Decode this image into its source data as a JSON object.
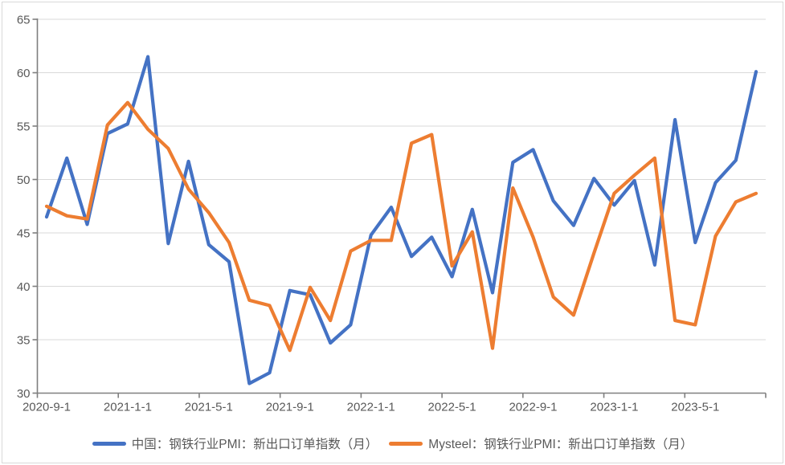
{
  "chart_data": {
    "type": "line",
    "title": "",
    "x": [
      "2020-9",
      "2020-10",
      "2020-11",
      "2020-12",
      "2021-1",
      "2021-2",
      "2021-3",
      "2021-4",
      "2021-5",
      "2021-6",
      "2021-7",
      "2021-8",
      "2021-9",
      "2021-10",
      "2021-11",
      "2021-12",
      "2022-1",
      "2022-2",
      "2022-3",
      "2022-4",
      "2022-5",
      "2022-6",
      "2022-7",
      "2022-8",
      "2022-9",
      "2022-10",
      "2022-11",
      "2022-12",
      "2023-1",
      "2023-2",
      "2023-3",
      "2023-4",
      "2023-5",
      "2023-6",
      "2023-7",
      "2023-8"
    ],
    "x_tick_labels": [
      "2020-9-1",
      "2021-1-1",
      "2021-5-1",
      "2021-9-1",
      "2022-1-1",
      "2022-5-1",
      "2022-9-1",
      "2023-1-1",
      "2023-5-1"
    ],
    "x_tick_interval": 4,
    "y_ticks": [
      30,
      35,
      40,
      45,
      50,
      55,
      60,
      65
    ],
    "ylim": [
      30,
      65
    ],
    "grid": "horizontal",
    "legend_position": "bottom",
    "series": [
      {
        "name": "中国：钢铁行业PMI：新出口订单指数（月）",
        "color": "#4472C4",
        "values": [
          46.5,
          52.0,
          45.8,
          54.3,
          55.2,
          61.5,
          44.0,
          51.7,
          43.9,
          42.3,
          30.9,
          31.9,
          39.6,
          39.2,
          34.7,
          36.4,
          44.8,
          47.4,
          42.8,
          44.6,
          40.9,
          47.2,
          39.4,
          51.6,
          52.8,
          48.0,
          45.7,
          50.1,
          47.6,
          49.9,
          42.0,
          55.6,
          44.1,
          49.7,
          51.8,
          60.1
        ]
      },
      {
        "name": "Mysteel：钢铁行业PMI：新出口订单指数（月）",
        "color": "#ED7D31",
        "values": [
          47.5,
          46.6,
          46.3,
          55.1,
          57.2,
          54.7,
          52.9,
          49.1,
          46.9,
          44.1,
          38.7,
          38.2,
          34.0,
          39.9,
          36.8,
          43.3,
          44.3,
          44.3,
          53.4,
          54.2,
          41.9,
          45.1,
          34.2,
          49.2,
          44.6,
          39.0,
          37.3,
          43.1,
          48.7,
          50.4,
          52.0,
          36.8,
          36.4,
          44.7,
          47.9,
          48.7
        ]
      }
    ]
  },
  "colors": {
    "gridline": "#d9d9d9",
    "axis": "#7f7f7f",
    "tick_label": "#595959",
    "background": "#ffffff",
    "frame_border": "#d9d9d9"
  }
}
